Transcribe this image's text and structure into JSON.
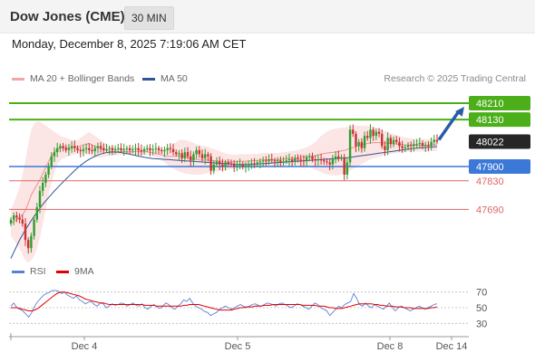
{
  "header": {
    "title": "Dow Jones (CME)",
    "timeframe": "30 MIN",
    "datetime": "Monday, December 8, 2025 7:19:06 AM CET",
    "credit": "Research © 2025 Trading Central"
  },
  "legend_main": [
    {
      "label": "MA 20 + Bollinger Bands",
      "color": "#f4a6a6"
    },
    {
      "label": "MA 50",
      "color": "#2f5597"
    }
  ],
  "legend_rsi": [
    {
      "label": "RSI",
      "color": "#5b7fd6"
    },
    {
      "label": "9MA",
      "color": "#e00000"
    }
  ],
  "colors": {
    "up": "#2e9e2e",
    "down": "#c83232",
    "resistance": "#4caf1a",
    "pivot": "#3b78d8",
    "support": "#e06666",
    "arrow": "#2a5ba8",
    "last_bg": "#262626"
  },
  "chart_data": [
    {
      "type": "candlestick",
      "ylim": [
        47430,
        48290
      ],
      "x_tick_labels": [
        "Dec 4",
        "Dec 5",
        "Dec 8",
        "Dec 14"
      ],
      "levels": [
        {
          "value": 48210,
          "label": "48210",
          "kind": "resistance"
        },
        {
          "value": 48130,
          "label": "48130",
          "kind": "resistance"
        },
        {
          "value": 48022,
          "label": "48022",
          "kind": "last"
        },
        {
          "value": 47900,
          "label": "47900",
          "kind": "pivot"
        },
        {
          "value": 47830,
          "label": "47830",
          "kind": "support"
        },
        {
          "value": 47690,
          "label": "47690",
          "kind": "support"
        }
      ],
      "close": [
        47640,
        47660,
        47650,
        47640,
        47620,
        47540,
        47500,
        47560,
        47640,
        47700,
        47780,
        47820,
        47860,
        47900,
        47950,
        47970,
        47990,
        48000,
        47990,
        47980,
        47990,
        48000,
        47990,
        47980,
        47975,
        47985,
        47990,
        47980,
        47975,
        47990,
        48000,
        47990,
        47980,
        47985,
        47990,
        47980,
        47985,
        47990,
        47980,
        47985,
        47990,
        47980,
        47985,
        47990,
        47980,
        47975,
        47985,
        47990,
        47980,
        47985,
        47990,
        47980,
        47975,
        47980,
        47990,
        47985,
        47970,
        47960,
        47965,
        47940,
        47970,
        47950,
        47930,
        47960,
        47980,
        47960,
        47940,
        47960,
        47950,
        47880,
        47910,
        47925,
        47910,
        47900,
        47920,
        47915,
        47910,
        47900,
        47905,
        47910,
        47900,
        47905,
        47910,
        47915,
        47910,
        47920,
        47925,
        47930,
        47925,
        47935,
        47930,
        47925,
        47930,
        47920,
        47925,
        47930,
        47935,
        47925,
        47940,
        47935,
        47930,
        47925,
        47945,
        47950,
        47935,
        47930,
        47935,
        47930,
        47925,
        47920,
        47910,
        47935,
        47950,
        47940,
        47945,
        47860,
        47920,
        48080,
        48060,
        48000,
        48020,
        47990,
        48050,
        48040,
        48080,
        48050,
        48070,
        48060,
        48000,
        47980,
        48040,
        48010,
        48030,
        48020,
        48000,
        47990,
        47995,
        48005,
        48000,
        48010,
        48010,
        48015,
        48000,
        48005,
        48000,
        48020,
        48030,
        48022
      ],
      "bb_upper": [
        47690,
        47720,
        47760,
        47800,
        47860,
        47930,
        48010,
        48080,
        48110,
        48120,
        48120,
        48110,
        48100,
        48090,
        48080,
        48070,
        48060,
        48050,
        48045,
        48040,
        48035,
        48030,
        48030,
        48030,
        48040,
        48050,
        48060,
        48070,
        48060,
        48050,
        48040,
        48030,
        48020,
        48010,
        48000,
        47995,
        47990,
        47990,
        47990,
        47990,
        47985,
        47985,
        47985,
        47990,
        47990,
        47985,
        47985,
        47985,
        47985,
        47985,
        47980,
        47980,
        47985,
        47985,
        47990,
        48000,
        48010,
        48020,
        48030,
        48030,
        48030,
        48025,
        48020,
        48015,
        48010,
        48005,
        48000,
        48000,
        47995,
        47990,
        47985,
        47980,
        47975,
        47970,
        47965,
        47960,
        47958,
        47958,
        47958,
        47960,
        47960,
        47960,
        47960,
        47960,
        47962,
        47962,
        47964,
        47966,
        47966,
        47966,
        47966,
        47966,
        47966,
        47968,
        47970,
        47972,
        47974,
        47976,
        47978,
        47980,
        47985,
        47990,
        47995,
        48000,
        48010,
        48020,
        48035,
        48050,
        48060,
        48070,
        48078,
        48082,
        48086,
        48088,
        48090,
        48092,
        48094,
        48096,
        48098,
        48100,
        48100,
        48100,
        48100,
        48098,
        48096,
        48094,
        48090,
        48086,
        48080,
        48074,
        48068,
        48062,
        48058,
        48054,
        48050,
        48046,
        48042,
        48040,
        48038,
        48036,
        48036,
        48034,
        48034,
        48034,
        48034,
        48034,
        48034,
        48034
      ],
      "bb_lower": [
        47560,
        47540,
        47520,
        47500,
        47470,
        47440,
        47430,
        47440,
        47460,
        47500,
        47550,
        47620,
        47690,
        47760,
        47820,
        47870,
        47910,
        47930,
        47940,
        47945,
        47950,
        47955,
        47960,
        47962,
        47962,
        47962,
        47960,
        47955,
        47950,
        47946,
        47944,
        47944,
        47946,
        47948,
        47950,
        47952,
        47954,
        47955,
        47956,
        47957,
        47958,
        47958,
        47958,
        47958,
        47958,
        47958,
        47958,
        47958,
        47955,
        47950,
        47945,
        47940,
        47930,
        47920,
        47908,
        47898,
        47890,
        47882,
        47876,
        47870,
        47866,
        47864,
        47862,
        47860,
        47860,
        47860,
        47862,
        47865,
        47868,
        47870,
        47872,
        47875,
        47878,
        47880,
        47882,
        47884,
        47886,
        47888,
        47890,
        47891,
        47892,
        47893,
        47894,
        47895,
        47896,
        47897,
        47898,
        47899,
        47900,
        47900,
        47900,
        47900,
        47901,
        47902,
        47903,
        47904,
        47905,
        47906,
        47906,
        47906,
        47905,
        47904,
        47902,
        47898,
        47892,
        47885,
        47878,
        47872,
        47866,
        47862,
        47858,
        47856,
        47856,
        47858,
        47862,
        47866,
        47872,
        47880,
        47888,
        47896,
        47904,
        47912,
        47920,
        47928,
        47934,
        47940,
        47944,
        47948,
        47952,
        47956,
        47960,
        47962,
        47964,
        47966,
        47968,
        47969,
        47970,
        47971,
        47972,
        47972,
        47973,
        47973,
        47974,
        47974,
        47975,
        47975,
        47976,
        47976
      ],
      "ma50": [
        47450,
        47480,
        47510,
        47540,
        47565,
        47590,
        47612,
        47635,
        47655,
        47675,
        47695,
        47715,
        47732,
        47748,
        47764,
        47780,
        47795,
        47810,
        47824,
        47838,
        47852,
        47866,
        47880,
        47893,
        47905,
        47916,
        47926,
        47935,
        47943,
        47950,
        47956,
        47961,
        47965,
        47968,
        47970,
        47971,
        47971,
        47970,
        47968,
        47966,
        47963,
        47960,
        47957,
        47954,
        47951,
        47948,
        47945,
        47943,
        47941,
        47939,
        47938,
        47937,
        47936,
        47935,
        47934,
        47933,
        47932,
        47931,
        47930,
        47929,
        47928,
        47927,
        47926,
        47925,
        47924,
        47923,
        47922,
        47921,
        47920,
        47919,
        47918,
        47917,
        47916,
        47915,
        47914,
        47913,
        47912,
        47911,
        47910,
        47910,
        47910,
        47910,
        47910,
        47910,
        47911,
        47912,
        47913,
        47914,
        47915,
        47916,
        47917,
        47918,
        47919,
        47920,
        47921,
        47922,
        47923,
        47924,
        47925,
        47926,
        47927,
        47928,
        47929,
        47930,
        47931,
        47932,
        47933,
        47934,
        47935,
        47936,
        47937,
        47938,
        47939,
        47940,
        47941,
        47942,
        47943,
        47945,
        47947,
        47949,
        47951,
        47953,
        47955,
        47957,
        47959,
        47961,
        47963,
        47965,
        47967,
        47969,
        47971,
        47973,
        47975,
        47977,
        47979,
        47981,
        47983,
        47985,
        47987,
        47989,
        47990,
        47991,
        47992,
        47993,
        47994,
        47995,
        47996,
        47997
      ]
    },
    {
      "type": "line",
      "name": "RSI",
      "ylim": [
        20,
        80
      ],
      "y_ticks": [
        70,
        50,
        30
      ],
      "rsi": [
        52,
        56,
        50,
        48,
        46,
        42,
        38,
        44,
        52,
        58,
        62,
        66,
        68,
        70,
        72,
        72,
        71,
        68,
        70,
        66,
        64,
        62,
        65,
        60,
        58,
        55,
        57,
        58,
        54,
        52,
        56,
        55,
        50,
        52,
        55,
        53,
        54,
        56,
        55,
        52,
        54,
        56,
        53,
        52,
        55,
        50,
        48,
        52,
        54,
        51,
        49,
        52,
        56,
        54,
        50,
        48,
        52,
        55,
        60,
        58,
        62,
        56,
        52,
        50,
        48,
        45,
        44,
        40,
        42,
        44,
        48,
        50,
        52,
        50,
        48,
        50,
        52,
        54,
        52,
        50,
        52,
        54,
        55,
        53,
        52,
        54,
        56,
        55,
        54,
        52,
        55,
        56,
        54,
        52,
        50,
        52,
        55,
        54,
        52,
        50,
        48,
        52,
        56,
        54,
        50,
        48,
        46,
        40,
        44,
        48,
        52,
        50,
        54,
        56,
        58,
        68,
        62,
        54,
        52,
        56,
        52,
        50,
        54,
        52,
        50,
        48,
        52,
        56,
        50,
        46,
        50,
        52,
        50,
        48,
        46,
        48,
        50,
        52,
        50,
        48,
        50,
        52,
        54,
        55
      ],
      "ma9": [
        50,
        50,
        50,
        49,
        48,
        47,
        46,
        46,
        47,
        49,
        52,
        55,
        58,
        61,
        64,
        67,
        69,
        70,
        70,
        69,
        68,
        67,
        66,
        65,
        63,
        61,
        60,
        59,
        58,
        57,
        56,
        56,
        55,
        54,
        54,
        54,
        54,
        54,
        54,
        54,
        54,
        54,
        54,
        54,
        54,
        53,
        53,
        53,
        53,
        52,
        52,
        52,
        52,
        52,
        52,
        52,
        52,
        52,
        53,
        53,
        54,
        54,
        54,
        54,
        53,
        52,
        51,
        50,
        49,
        48,
        47,
        47,
        47,
        47,
        47,
        48,
        49,
        50,
        50,
        51,
        51,
        51,
        52,
        52,
        52,
        53,
        53,
        53,
        54,
        54,
        54,
        54,
        54,
        54,
        54,
        54,
        54,
        54,
        53,
        53,
        53,
        53,
        53,
        52,
        52,
        52,
        51,
        50,
        50,
        49,
        49,
        49,
        50,
        51,
        52,
        53,
        54,
        55,
        55,
        55,
        55,
        55,
        54,
        54,
        53,
        53,
        52,
        52,
        52,
        51,
        51,
        51,
        50,
        50,
        50,
        49,
        49,
        49,
        49,
        49,
        49,
        50,
        50,
        51
      ]
    }
  ]
}
